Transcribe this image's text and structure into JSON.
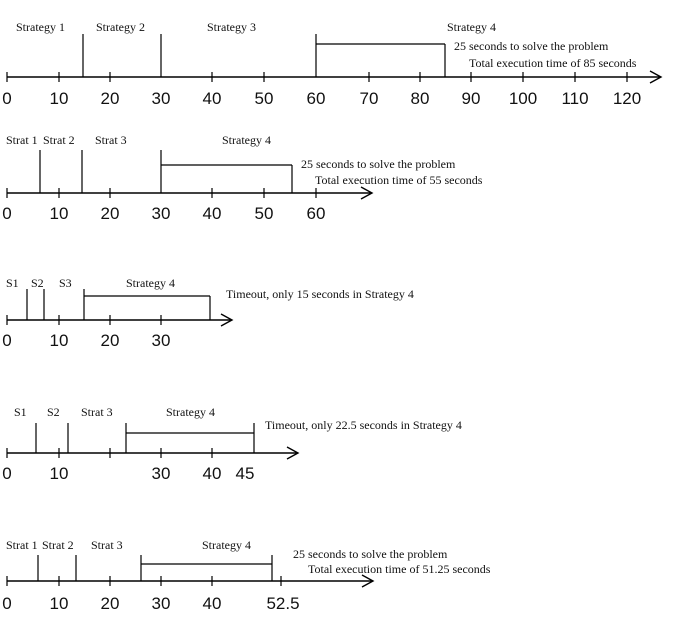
{
  "diagrams": [
    {
      "name": "timeline-1",
      "ticks": [
        "0",
        "10",
        "20",
        "30",
        "40",
        "50",
        "60",
        "70",
        "80",
        "90",
        "100",
        "110",
        "120"
      ],
      "strategies": [
        "Strategy 1",
        "Strategy 2",
        "Strategy 3",
        "Strategy 4"
      ],
      "notes": [
        "25 seconds to solve the problem",
        "Total execution time of 85 seconds"
      ]
    },
    {
      "name": "timeline-2",
      "ticks": [
        "0",
        "10",
        "20",
        "30",
        "40",
        "50",
        "60"
      ],
      "strategies": [
        "Strat 1",
        "Strat 2",
        "Strat 3",
        "Strategy 4"
      ],
      "notes": [
        "25 seconds to solve the problem",
        "Total execution time of 55 seconds"
      ]
    },
    {
      "name": "timeline-3",
      "ticks": [
        "0",
        "10",
        "20",
        "30"
      ],
      "strategies": [
        "S1",
        "S2",
        "S3",
        "Strategy 4"
      ],
      "notes": [
        "Timeout, only 15 seconds in Strategy 4"
      ]
    },
    {
      "name": "timeline-4",
      "ticks": [
        "0",
        "10",
        "30",
        "40",
        "45"
      ],
      "strategies": [
        "S1",
        "S2",
        "Strat 3",
        "Strategy 4"
      ],
      "notes": [
        "Timeout, only 22.5 seconds in Strategy 4"
      ]
    },
    {
      "name": "timeline-5",
      "ticks": [
        "0",
        "10",
        "20",
        "30",
        "40",
        "52.5"
      ],
      "strategies": [
        "Strat 1",
        "Strat 2",
        "Strat 3",
        "Strategy 4"
      ],
      "notes": [
        "25 seconds to solve the problem",
        "Total execution time of 51.25 seconds"
      ]
    }
  ]
}
